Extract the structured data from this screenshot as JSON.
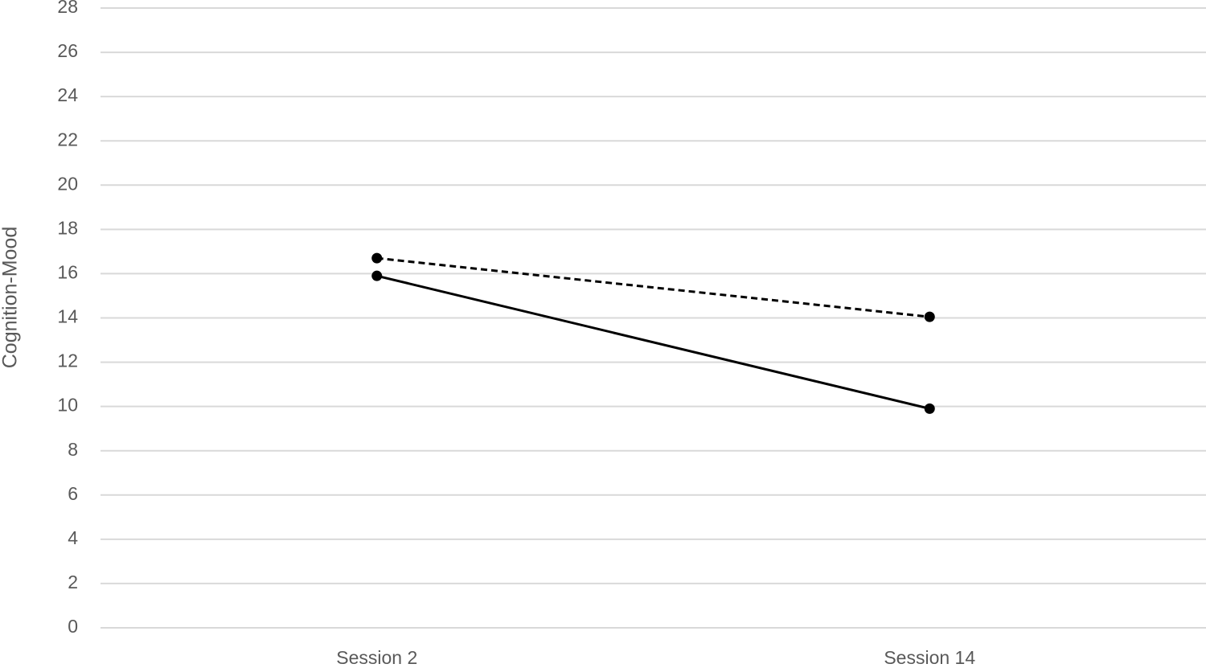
{
  "chart_data": {
    "type": "line",
    "y_label": "Cognition-Mood",
    "categories": [
      "Session 2",
      "Session 14"
    ],
    "series": [
      {
        "color": "#000000",
        "style": "solid",
        "values": [
          15.9,
          9.9
        ]
      },
      {
        "color": "#000000",
        "style": "dashed",
        "values": [
          16.7,
          14.05
        ]
      }
    ],
    "ylim": [
      0,
      28
    ],
    "yticks": [
      0,
      2,
      4,
      6,
      8,
      10,
      12,
      14,
      16,
      18,
      20,
      22,
      24,
      26,
      28
    ],
    "grid": true
  }
}
